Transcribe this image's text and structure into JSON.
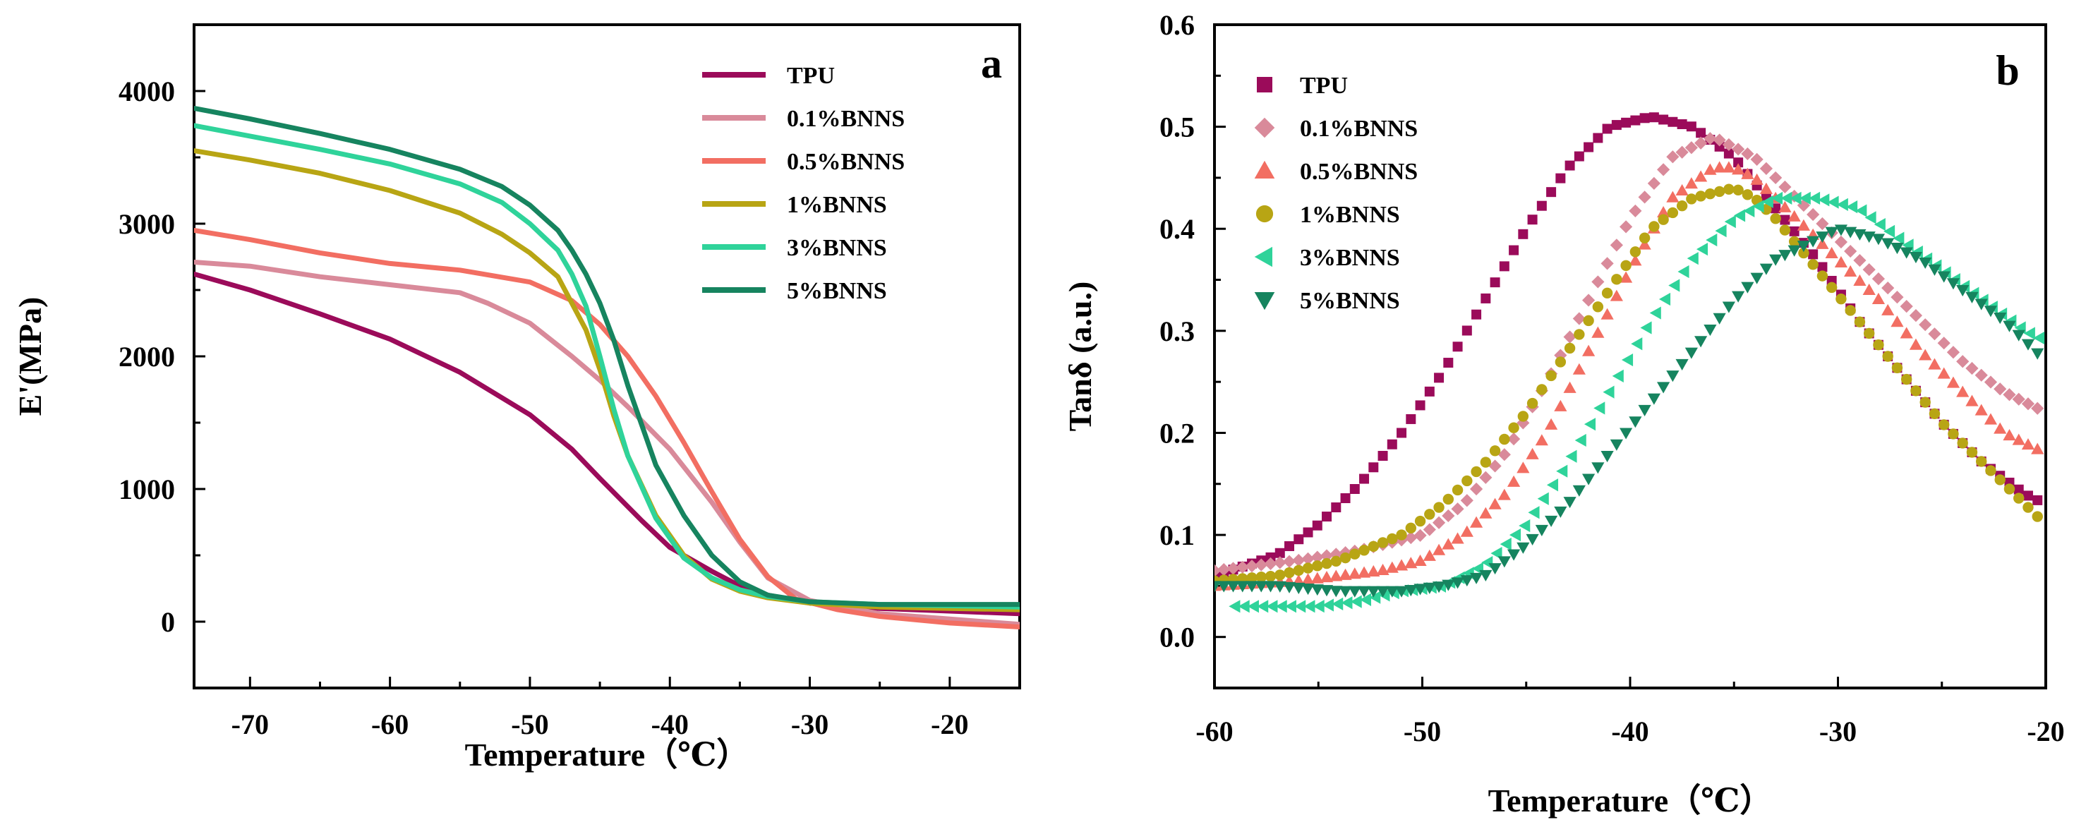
{
  "chart_data": [
    {
      "panel": "a",
      "type": "line",
      "panel_label": "a",
      "xlabel": "Temperature（℃）",
      "ylabel": "E'(MPa)",
      "xlim": [
        -74,
        -15
      ],
      "ylim": [
        -500,
        4500
      ],
      "xticks": [
        -70,
        -60,
        -50,
        -40,
        -30,
        -20
      ],
      "xtick_labels": [
        "-70",
        "-60",
        "-50",
        "-40",
        "-30",
        "-20"
      ],
      "yticks": [
        0,
        1000,
        2000,
        3000,
        4000
      ],
      "ytick_labels": [
        "0",
        "1000",
        "2000",
        "3000",
        "4000"
      ],
      "legend_position": "top-right",
      "series": [
        {
          "name": "TPU",
          "color": "#9b0b5a",
          "x": [
            -74,
            -70,
            -65,
            -60,
            -55,
            -50,
            -47,
            -45,
            -42,
            -40,
            -37,
            -35,
            -33,
            -30,
            -25,
            -20,
            -15
          ],
          "y": [
            2620,
            2500,
            2320,
            2130,
            1880,
            1560,
            1300,
            1080,
            760,
            560,
            380,
            270,
            200,
            140,
            100,
            80,
            60
          ]
        },
        {
          "name": "0.1%BNNS",
          "color": "#d98a9a",
          "x": [
            -74,
            -70,
            -65,
            -60,
            -55,
            -53,
            -50,
            -47,
            -45,
            -43,
            -40,
            -37,
            -35,
            -33,
            -30,
            -25,
            -20,
            -15
          ],
          "y": [
            2710,
            2680,
            2600,
            2540,
            2480,
            2400,
            2250,
            2000,
            1820,
            1620,
            1300,
            900,
            600,
            330,
            160,
            60,
            20,
            -20
          ]
        },
        {
          "name": "0.5%BNNS",
          "color": "#f26e62",
          "x": [
            -74,
            -70,
            -65,
            -60,
            -55,
            -50,
            -47,
            -45,
            -43,
            -41,
            -39,
            -37,
            -35,
            -33,
            -31,
            -28,
            -25,
            -20,
            -15
          ],
          "y": [
            2950,
            2880,
            2780,
            2700,
            2650,
            2560,
            2420,
            2240,
            2000,
            1700,
            1350,
            980,
            620,
            340,
            170,
            90,
            40,
            -10,
            -40
          ]
        },
        {
          "name": "1%BNNS",
          "color": "#b8a514",
          "x": [
            -74,
            -70,
            -65,
            -60,
            -55,
            -52,
            -50,
            -48,
            -46,
            -45,
            -44,
            -43,
            -41,
            -39,
            -37,
            -35,
            -33,
            -30,
            -25,
            -20,
            -15
          ],
          "y": [
            3550,
            3480,
            3380,
            3250,
            3080,
            2920,
            2780,
            2600,
            2200,
            1900,
            1550,
            1250,
            800,
            500,
            320,
            230,
            180,
            140,
            110,
            100,
            90
          ]
        },
        {
          "name": "3%BNNS",
          "color": "#2fd39a",
          "x": [
            -74,
            -70,
            -65,
            -60,
            -55,
            -52,
            -50,
            -48,
            -47,
            -46,
            -45,
            -44,
            -43,
            -41,
            -39,
            -37,
            -35,
            -33,
            -30,
            -25,
            -20,
            -15
          ],
          "y": [
            3740,
            3660,
            3560,
            3450,
            3300,
            3160,
            3000,
            2800,
            2620,
            2380,
            2000,
            1600,
            1250,
            780,
            480,
            330,
            240,
            190,
            150,
            130,
            120,
            110
          ]
        },
        {
          "name": "5%BNNS",
          "color": "#16845f",
          "x": [
            -74,
            -70,
            -65,
            -60,
            -55,
            -52,
            -50,
            -48,
            -47,
            -46,
            -45,
            -44,
            -43,
            -42,
            -41,
            -39,
            -37,
            -35,
            -33,
            -30,
            -25,
            -20,
            -15
          ],
          "y": [
            3870,
            3790,
            3680,
            3560,
            3410,
            3280,
            3140,
            2950,
            2800,
            2620,
            2400,
            2120,
            1780,
            1480,
            1180,
            800,
            500,
            300,
            200,
            150,
            130,
            130,
            130
          ]
        }
      ]
    },
    {
      "panel": "b",
      "type": "scatter",
      "panel_label": "b",
      "xlabel": "Temperature（℃）",
      "ylabel": "Tanδ (a.u.)",
      "xlim": [
        -60,
        -20
      ],
      "ylim": [
        -0.05,
        0.6
      ],
      "xticks": [
        -60,
        -50,
        -40,
        -30,
        -20
      ],
      "xtick_labels": [
        "-60",
        "-50",
        "-40",
        "-30",
        "-20"
      ],
      "yticks": [
        0.0,
        0.1,
        0.2,
        0.3,
        0.4,
        0.5,
        0.6
      ],
      "ytick_labels": [
        "0.0",
        "0.1",
        "0.2",
        "0.3",
        "0.4",
        "0.5",
        "0.6"
      ],
      "legend_position": "top-left",
      "series": [
        {
          "name": "TPU",
          "marker": "square",
          "color": "#9b0b5a",
          "x": [
            -60,
            -57,
            -55,
            -53,
            -51,
            -49,
            -47,
            -45,
            -43,
            -41,
            -39,
            -37,
            -35,
            -33,
            -31,
            -29,
            -27,
            -25,
            -23,
            -21,
            -20
          ],
          "y": [
            0.06,
            0.08,
            0.11,
            0.15,
            0.2,
            0.26,
            0.33,
            0.4,
            0.46,
            0.5,
            0.51,
            0.5,
            0.47,
            0.42,
            0.37,
            0.31,
            0.26,
            0.21,
            0.17,
            0.14,
            0.13
          ]
        },
        {
          "name": "0.1%BNNS",
          "marker": "diamond",
          "color": "#d98a9a",
          "x": [
            -60,
            -56,
            -53,
            -50,
            -48,
            -46,
            -44,
            -42,
            -40,
            -38,
            -36,
            -34,
            -32,
            -30,
            -28,
            -26,
            -24,
            -22,
            -20
          ],
          "y": [
            0.065,
            0.075,
            0.085,
            0.1,
            0.13,
            0.18,
            0.25,
            0.33,
            0.41,
            0.47,
            0.49,
            0.47,
            0.43,
            0.39,
            0.35,
            0.31,
            0.27,
            0.24,
            0.22
          ]
        },
        {
          "name": "0.5%BNNS",
          "marker": "triangle-up",
          "color": "#f26e62",
          "x": [
            -60,
            -56,
            -52,
            -50,
            -48,
            -46,
            -44,
            -42,
            -40,
            -38,
            -36,
            -35,
            -34,
            -32,
            -30,
            -28,
            -26,
            -24,
            -22,
            -20
          ],
          "y": [
            0.05,
            0.055,
            0.065,
            0.075,
            0.1,
            0.14,
            0.2,
            0.28,
            0.36,
            0.43,
            0.46,
            0.46,
            0.45,
            0.41,
            0.37,
            0.33,
            0.28,
            0.24,
            0.2,
            0.18
          ]
        },
        {
          "name": "1%BNNS",
          "marker": "circle",
          "color": "#b8a514",
          "x": [
            -60,
            -57,
            -54,
            -51,
            -49,
            -47,
            -45,
            -43,
            -41,
            -39,
            -37,
            -35,
            -34,
            -33,
            -31,
            -29,
            -27,
            -25,
            -23,
            -21,
            -20
          ],
          "y": [
            0.055,
            0.06,
            0.075,
            0.1,
            0.13,
            0.17,
            0.22,
            0.28,
            0.34,
            0.4,
            0.43,
            0.44,
            0.43,
            0.41,
            0.36,
            0.31,
            0.26,
            0.21,
            0.17,
            0.13,
            0.11
          ]
        },
        {
          "name": "3%BNNS",
          "marker": "triangle-left",
          "color": "#2fd39a",
          "x": [
            -59,
            -57,
            -55,
            -53,
            -51,
            -49,
            -47,
            -45,
            -43,
            -41,
            -39,
            -37,
            -35,
            -33,
            -31,
            -29,
            -27,
            -25,
            -23,
            -21,
            -20
          ],
          "y": [
            0.03,
            0.03,
            0.03,
            0.035,
            0.045,
            0.05,
            0.07,
            0.11,
            0.17,
            0.24,
            0.31,
            0.37,
            0.41,
            0.43,
            0.43,
            0.42,
            0.39,
            0.36,
            0.33,
            0.3,
            0.29
          ]
        },
        {
          "name": "5%BNNS",
          "marker": "triangle-down",
          "color": "#16845f",
          "x": [
            -60,
            -57,
            -54,
            -51,
            -49,
            -47,
            -45,
            -43,
            -41,
            -39,
            -37,
            -35,
            -33,
            -31,
            -30,
            -28,
            -26,
            -24,
            -22,
            -20
          ],
          "y": [
            0.05,
            0.05,
            0.045,
            0.045,
            0.05,
            0.06,
            0.09,
            0.13,
            0.18,
            0.23,
            0.28,
            0.33,
            0.37,
            0.39,
            0.4,
            0.39,
            0.37,
            0.34,
            0.31,
            0.27
          ]
        }
      ]
    }
  ]
}
